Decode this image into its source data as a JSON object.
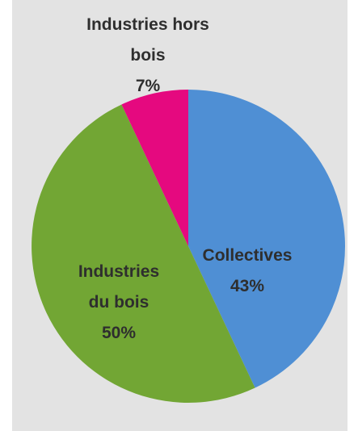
{
  "chart_data": {
    "type": "pie",
    "categories": [
      "Collectives",
      "Industries du bois",
      "Industries hors bois"
    ],
    "values": [
      43,
      50,
      7
    ],
    "value_labels": [
      "43%",
      "50%",
      "7%"
    ],
    "colors": [
      "#4f8fd4",
      "#72a634",
      "#e5097f"
    ],
    "start_angle": 0,
    "direction": "clockwise"
  }
}
